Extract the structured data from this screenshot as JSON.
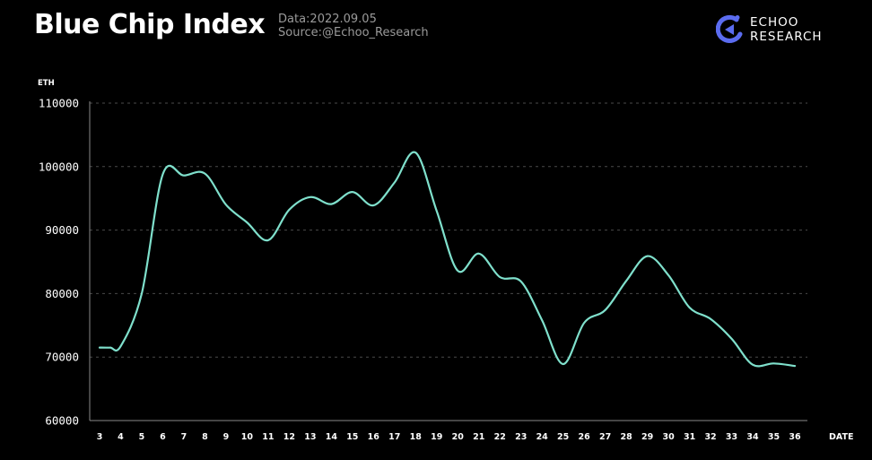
{
  "header": {
    "title": "Blue Chip Index",
    "date_line": "Data:2022.09.05",
    "source_line": "Source:@Echoo_Research"
  },
  "brand": {
    "line1": "ECHOO",
    "line2": "RESEARCH",
    "logo_icon": "echoo-logo-icon",
    "logo_color": "#5b6cf0"
  },
  "chart_data": {
    "type": "line",
    "title": "Blue Chip Index",
    "xlabel": "DATE",
    "ylabel": "ETH",
    "ylim": [
      60000,
      110000
    ],
    "yticks": [
      "110000",
      "100000",
      "90000",
      "80000",
      "70000",
      "60000"
    ],
    "grid": true,
    "legend": "none",
    "line_color": "#7fe0cc",
    "x": [
      3,
      3.5,
      4,
      5,
      6,
      7,
      8,
      9,
      10,
      11,
      12,
      13,
      14,
      15,
      16,
      17,
      18,
      19,
      20,
      21,
      22,
      23,
      24,
      25,
      26,
      27,
      28,
      29,
      30,
      31,
      32,
      33,
      34,
      35,
      36
    ],
    "series": [
      {
        "values": [
          71500,
          71500,
          71700,
          80000,
          98800,
          98600,
          98900,
          94000,
          91200,
          88400,
          93200,
          95200,
          94100,
          96000,
          93900,
          97500,
          102200,
          93000,
          83600,
          86300,
          82600,
          81900,
          75800,
          68900,
          75400,
          77400,
          82000,
          85900,
          82900,
          77800,
          76000,
          72900,
          68800,
          69000,
          68600
        ]
      }
    ],
    "x_tick_labels": [
      "3",
      "4",
      "5",
      "6",
      "7",
      "8",
      "9",
      "10",
      "11",
      "12",
      "13",
      "14",
      "15",
      "16",
      "17",
      "18",
      "19",
      "20",
      "21",
      "22",
      "23",
      "24",
      "25",
      "26",
      "27",
      "28",
      "29",
      "30",
      "31",
      "32",
      "33",
      "34",
      "35",
      "36"
    ]
  }
}
